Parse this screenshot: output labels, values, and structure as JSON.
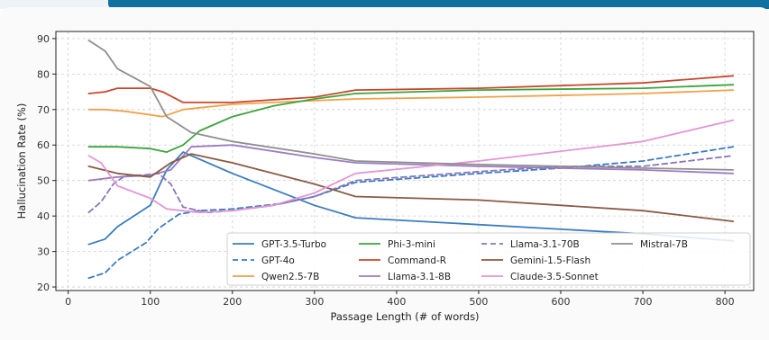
{
  "chart_data": {
    "type": "line",
    "xlabel": "Passage Length (# of words)",
    "ylabel": "Hallucination Rate (%)",
    "xlim": [
      -15,
      835
    ],
    "ylim": [
      19,
      92
    ],
    "xticks": [
      "0",
      "100",
      "200",
      "300",
      "400",
      "500",
      "600",
      "700",
      "800"
    ],
    "yticks": [
      "20",
      "30",
      "40",
      "50",
      "60",
      "70",
      "80",
      "90"
    ],
    "xtick_values": [
      0,
      100,
      200,
      300,
      400,
      500,
      600,
      700,
      800
    ],
    "ytick_values": [
      20,
      30,
      40,
      50,
      60,
      70,
      80,
      90
    ],
    "grid": true,
    "legend_position": "lower-right",
    "series": [
      {
        "name": "GPT-3.5-Turbo",
        "color": "#3b7dbf",
        "dash": "solid",
        "x": [
          25,
          45,
          60,
          100,
          120,
          140,
          200,
          300,
          350,
          700,
          810
        ],
        "y": [
          32,
          33.5,
          37,
          43,
          53,
          58,
          52,
          43,
          39.5,
          35,
          33
        ]
      },
      {
        "name": "GPT-4o",
        "color": "#3b7dbf",
        "dash": "dashed",
        "x": [
          25,
          45,
          60,
          95,
          110,
          135,
          160,
          200,
          260,
          300,
          350,
          500,
          600,
          700,
          810
        ],
        "y": [
          22.5,
          24,
          27.5,
          32.5,
          36.5,
          40.5,
          41.5,
          42,
          43.5,
          45.5,
          49.5,
          52,
          53.5,
          55.5,
          59.5
        ]
      },
      {
        "name": "Qwen2.5-7B",
        "color": "#f0a14a",
        "dash": "solid",
        "x": [
          25,
          45,
          70,
          100,
          115,
          140,
          200,
          300,
          350,
          500,
          700,
          810
        ],
        "y": [
          70,
          70,
          69.5,
          68.5,
          68,
          70,
          71.5,
          72.5,
          73,
          73.5,
          74.5,
          75.5
        ]
      },
      {
        "name": "Phi-3-mini",
        "color": "#3da33d",
        "dash": "solid",
        "x": [
          25,
          60,
          100,
          120,
          140,
          160,
          200,
          250,
          300,
          350,
          500,
          700,
          810
        ],
        "y": [
          59.5,
          59.5,
          59,
          58,
          60,
          64,
          68,
          71,
          73,
          74.5,
          75.5,
          76,
          77
        ]
      },
      {
        "name": "Command-R",
        "color": "#c9472c",
        "dash": "solid",
        "x": [
          25,
          45,
          60,
          100,
          115,
          140,
          200,
          300,
          350,
          500,
          700,
          810
        ],
        "y": [
          74.5,
          75,
          76,
          76,
          75,
          72,
          72,
          73.5,
          75.5,
          76,
          77.5,
          79.5
        ]
      },
      {
        "name": "Llama-3.1-8B",
        "color": "#9b7cc4",
        "dash": "solid",
        "x": [
          25,
          60,
          100,
          125,
          150,
          200,
          300,
          350,
          500,
          700,
          810
        ],
        "y": [
          50,
          51,
          51.5,
          53,
          59.5,
          60,
          56.5,
          55,
          54,
          53,
          52
        ]
      },
      {
        "name": "Llama-3.1-70B",
        "color": "#8a75bd",
        "dash": "dashed",
        "x": [
          25,
          40,
          55,
          70,
          90,
          110,
          125,
          140,
          170,
          200,
          250,
          300,
          350,
          500,
          600,
          700,
          810
        ],
        "y": [
          41,
          44,
          49,
          51.5,
          51.5,
          52,
          49,
          42.5,
          41,
          41.5,
          43,
          45.5,
          50,
          52.5,
          54,
          54,
          57
        ]
      },
      {
        "name": "Gemini-1.5-Flash",
        "color": "#8c5a45",
        "dash": "solid",
        "x": [
          25,
          60,
          100,
          125,
          150,
          200,
          300,
          350,
          500,
          700,
          810
        ],
        "y": [
          54,
          52,
          51,
          55,
          57.5,
          55,
          49,
          45.5,
          44.5,
          41.5,
          38.5
        ]
      },
      {
        "name": "Claude-3.5-Sonnet",
        "color": "#e396d4",
        "dash": "solid",
        "x": [
          25,
          40,
          60,
          100,
          120,
          160,
          200,
          250,
          300,
          350,
          500,
          700,
          810
        ],
        "y": [
          57,
          55,
          48.5,
          45,
          42,
          41,
          41.5,
          43,
          46.5,
          52,
          55.5,
          61,
          67
        ]
      },
      {
        "name": "Mistral-7B",
        "color": "#8f8f8f",
        "dash": "solid",
        "x": [
          25,
          45,
          60,
          100,
          120,
          150,
          200,
          300,
          350,
          500,
          700,
          810
        ],
        "y": [
          89.5,
          86.5,
          81.5,
          76.5,
          68,
          63.5,
          61,
          57.5,
          55.5,
          54.5,
          53.5,
          53
        ]
      }
    ]
  }
}
